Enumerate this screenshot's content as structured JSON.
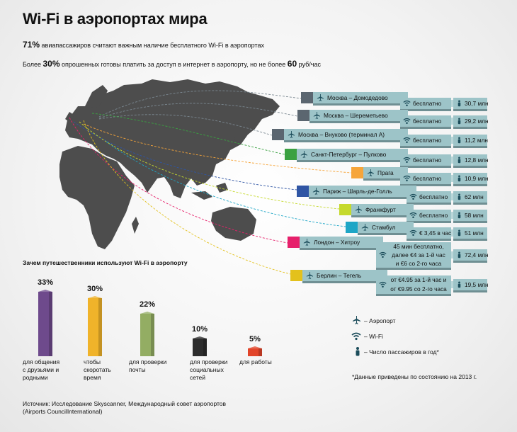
{
  "title": "Wi-Fi в аэропортах мира",
  "stat1": {
    "value": "71%",
    "text": " авиапассажиров считают важным наличие бесплатного Wi-Fi в аэропортах"
  },
  "stat2": {
    "prefix": "Более ",
    "value": "30%",
    "middle": " опрошенных готовы платить за доступ в интернет в аэропорту, но не более ",
    "value2": "60",
    "suffix": " руб/час"
  },
  "airports": [
    {
      "name": "Москва – Домодедово",
      "color": "#5b6670",
      "wifi": "бесплатно",
      "passengers": "30,7 млн"
    },
    {
      "name": "Москва – Шереметьево",
      "color": "#5b6670",
      "wifi": "бесплатно",
      "passengers": "29,2 млн"
    },
    {
      "name": "Москва – Внуково (терминал А)",
      "color": "#5b6670",
      "wifi": "бесплатно",
      "passengers": "11,2 млн"
    },
    {
      "name": "Санкт-Петербург – Пулково",
      "color": "#3aa141",
      "wifi": "бесплатно",
      "passengers": "12,8 млн"
    },
    {
      "name": "Прага",
      "color": "#f6a53a",
      "wifi": "бесплатно",
      "passengers": "10,9 млн"
    },
    {
      "name": "Париж – Шарль-де-Голль",
      "color": "#2f55a4",
      "wifi": "бесплатно",
      "passengers": "62 млн"
    },
    {
      "name": "Франкфурт",
      "color": "#c5d92d",
      "wifi": "бесплатно",
      "passengers": "58 млн"
    },
    {
      "name": "Стамбул",
      "color": "#1ea6c6",
      "wifi": "€ 3,45 в час",
      "passengers": "51 млн"
    },
    {
      "name": "Лондон – Хитроу",
      "color": "#e6206b",
      "wifi_lines": [
        "45 мин бесплатно,",
        "далее €4 за 1-й час",
        "и €6 со 2-го часа"
      ],
      "passengers": "72,4 млн"
    },
    {
      "name": "Берлин – Тегель",
      "color": "#e3c11c",
      "wifi_lines": [
        "от €4.95 за 1-й час и",
        "от €9.95 со 2-го часа"
      ],
      "passengers": "19,5 млн"
    }
  ],
  "usage": {
    "title": "Зачем путешественники используют Wi-Fi в аэропорту",
    "bars": [
      {
        "pct": "33%",
        "value": 33,
        "label_lines": [
          "для общения",
          "с друзьями и",
          "родными"
        ],
        "color": "#6e4a8c"
      },
      {
        "pct": "30%",
        "value": 30,
        "label_lines": [
          "чтобы",
          "скоротать",
          "время"
        ],
        "color": "#f0b32a"
      },
      {
        "pct": "22%",
        "value": 22,
        "label_lines": [
          "для проверки",
          "почты"
        ],
        "color": "#93ad63"
      },
      {
        "pct": "10%",
        "value": 10,
        "label_lines": [
          "для проверки",
          "социальных",
          "сетей"
        ],
        "color": "#2d2d2d"
      },
      {
        "pct": "5%",
        "value": 5,
        "label_lines": [
          "для работы"
        ],
        "color": "#e2452a"
      }
    ]
  },
  "legend": {
    "airport": "– Аэропорт",
    "wifi": "– Wi-Fi",
    "passengers": "– Число пассажиров в год*"
  },
  "note": "*Данные приведены по состоянию на 2013 г.",
  "source_lines": [
    "Источник: Исследование Skyscanner, Международный совет аэропортов",
    "(Airports CouncilInternational)"
  ],
  "icons": {
    "airport": "plane-icon",
    "wifi": "wifi-icon",
    "passengers": "person-icon"
  },
  "colors": {
    "box": "#9dc4c8",
    "box_shadow": "#6f8f93",
    "map": "#4d4d4d"
  }
}
